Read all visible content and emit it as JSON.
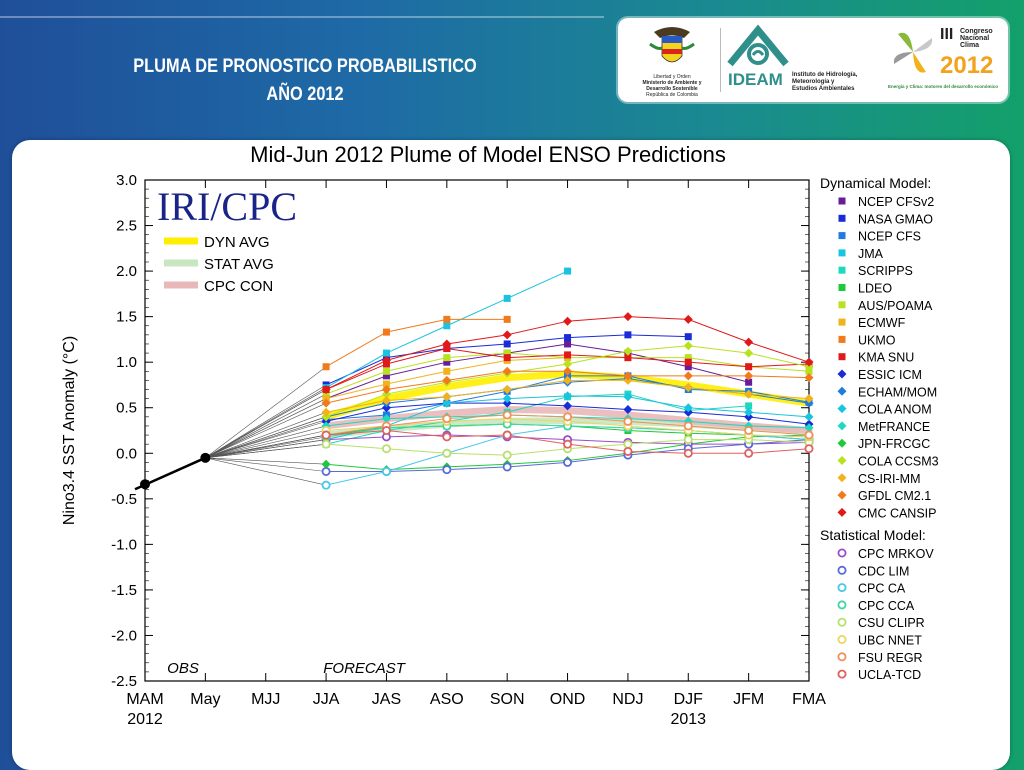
{
  "slide": {
    "title_line1": "PLUMA DE PRONOSTICO PROBABILISTICO",
    "title_line2": "AÑO 2012"
  },
  "logos": {
    "ministerio_lines": [
      "Libertad y Orden",
      "Ministerio de Ambiente y",
      "Desarrollo Sostenible",
      "República de Colombia"
    ],
    "ideam_name": "IDEAM",
    "ideam_lines": [
      "Instituto de Hidrología,",
      "Meteorología y",
      "Estudios Ambientales"
    ],
    "congreso_roman": "III",
    "congreso_lines": [
      "Congreso",
      "Nacional",
      "Clima"
    ],
    "congreso_year": "2012",
    "congreso_tagline": "Energía y Clima: motores del desarrollo económico"
  },
  "chart_data": {
    "type": "line",
    "title": "Mid-Jun 2012 Plume of Model ENSO Predictions",
    "ylabel": "Nino3.4 SST Anomaly (°C)",
    "xlabel": "",
    "ylim": [
      -2.5,
      3.0
    ],
    "yticks": [
      "3.0",
      "2.5",
      "2.0",
      "1.5",
      "1.0",
      "0.5",
      "0.0",
      "-0.5",
      "-1.0",
      "-1.5",
      "-2.0",
      "-2.5"
    ],
    "categories": [
      "MAM",
      "May",
      "MJJ",
      "JJA",
      "JAS",
      "ASO",
      "SON",
      "OND",
      "NDJ",
      "DJF",
      "JFM",
      "FMA"
    ],
    "year_labels": [
      {
        "category": "MAM",
        "text": "2012"
      },
      {
        "category": "DJF",
        "text": "2013"
      }
    ],
    "region_labels": [
      {
        "category": "MAM",
        "text": "OBS"
      },
      {
        "category": "JJA",
        "text": "FORECAST"
      }
    ],
    "badge": "IRI/CPC",
    "averages": [
      {
        "name": "DYN AVG",
        "color": "#ffee00",
        "values": [
          null,
          -0.05,
          null,
          0.4,
          0.6,
          0.73,
          0.83,
          0.87,
          0.83,
          0.75,
          0.65,
          0.55
        ]
      },
      {
        "name": "STAT AVG",
        "color": "#c8e6c0",
        "values": [
          null,
          -0.05,
          null,
          0.2,
          0.27,
          0.32,
          0.35,
          0.36,
          0.35,
          0.32,
          0.28,
          0.25
        ]
      },
      {
        "name": "CPC CON",
        "color": "#e8b8b8",
        "values": [
          null,
          -0.05,
          null,
          0.3,
          0.38,
          0.44,
          0.48,
          0.47,
          0.42,
          0.36,
          0.3,
          0.25
        ]
      }
    ],
    "observed": {
      "values": [
        -0.34,
        -0.05
      ],
      "color": "#000000"
    },
    "dynamical_header": "Dynamical Model:",
    "statistical_header": "Statistical Model:",
    "dynamical_models": [
      {
        "name": "NCEP CFSv2",
        "color": "#6a1b9a",
        "shape": "square",
        "values": [
          0.6,
          0.85,
          1.0,
          1.1,
          1.2,
          1.1,
          0.95,
          0.78,
          null
        ]
      },
      {
        "name": "NASA GMAO",
        "color": "#1a2bd8",
        "shape": "square",
        "values": [
          0.75,
          1.05,
          1.15,
          1.2,
          1.27,
          1.3,
          1.28,
          null,
          null
        ]
      },
      {
        "name": "NCEP CFS",
        "color": "#1e7be0",
        "shape": "square",
        "values": [
          0.37,
          0.42,
          0.55,
          0.68,
          0.85,
          0.85,
          0.7,
          0.68,
          0.56
        ]
      },
      {
        "name": "JMA",
        "color": "#19c4e0",
        "shape": "square",
        "values": [
          0.72,
          1.1,
          1.4,
          1.7,
          2.0,
          null,
          null,
          null,
          null
        ]
      },
      {
        "name": "SCRIPPS",
        "color": "#1ed8c0",
        "shape": "square",
        "values": [
          0.1,
          0.25,
          0.35,
          0.45,
          0.62,
          0.65,
          0.47,
          0.52,
          null
        ]
      },
      {
        "name": "LDEO",
        "color": "#1ec93a",
        "shape": "square",
        "values": [
          0.2,
          0.28,
          0.3,
          0.32,
          0.3,
          0.25,
          0.22,
          0.2,
          0.15
        ]
      },
      {
        "name": "AUS/POAMA",
        "color": "#b8e21e",
        "shape": "square",
        "values": [
          0.65,
          0.9,
          1.05,
          1.1,
          1.05,
          1.05,
          1.05,
          0.95,
          0.9
        ]
      },
      {
        "name": "ECMWF",
        "color": "#f2b21c",
        "shape": "square",
        "values": [
          0.6,
          0.76,
          0.9,
          1.02,
          1.05,
          null,
          null,
          null,
          null
        ]
      },
      {
        "name": "UKMO",
        "color": "#f07a1c",
        "shape": "square",
        "values": [
          0.95,
          1.33,
          1.47,
          1.47,
          null,
          null,
          null,
          null,
          null
        ]
      },
      {
        "name": "KMA SNU",
        "color": "#e01a1a",
        "shape": "square",
        "values": [
          0.7,
          0.98,
          1.15,
          1.05,
          1.08,
          1.05,
          1.0,
          0.95,
          0.98
        ]
      },
      {
        "name": "ESSIC ICM",
        "color": "#1a2bd8",
        "shape": "diamond",
        "values": [
          0.35,
          0.5,
          0.55,
          0.55,
          0.52,
          0.48,
          0.45,
          0.4,
          0.32
        ]
      },
      {
        "name": "ECHAM/MOM",
        "color": "#1e7be0",
        "shape": "diamond",
        "values": [
          0.4,
          0.55,
          0.62,
          0.7,
          0.78,
          0.82,
          0.72,
          0.65,
          0.55
        ]
      },
      {
        "name": "COLA ANOM",
        "color": "#19c4e0",
        "shape": "diamond",
        "values": [
          0.15,
          0.3,
          0.55,
          0.6,
          0.63,
          0.62,
          0.5,
          0.45,
          0.4
        ]
      },
      {
        "name": "MetFRANCE",
        "color": "#1ed8c0",
        "shape": "diamond",
        "values": [
          0.3,
          0.38,
          0.4,
          0.42,
          0.4,
          0.38,
          0.35,
          0.3,
          0.28
        ]
      },
      {
        "name": "JPN-FRCGC",
        "color": "#1ec93a",
        "shape": "diamond",
        "values": [
          -0.12,
          -0.18,
          -0.15,
          -0.12,
          -0.08,
          0.0,
          0.1,
          0.18,
          0.2
        ]
      },
      {
        "name": "COLA CCSM3",
        "color": "#b8e21e",
        "shape": "diamond",
        "values": [
          0.4,
          0.65,
          0.78,
          0.88,
          0.98,
          1.12,
          1.18,
          1.1,
          0.95
        ]
      },
      {
        "name": "CS-IRI-MM",
        "color": "#f2b21c",
        "shape": "diamond",
        "values": [
          0.45,
          0.58,
          0.62,
          0.7,
          0.8,
          0.8,
          0.72,
          0.65,
          0.6
        ]
      },
      {
        "name": "GFDL CM2.1",
        "color": "#f07a1c",
        "shape": "diamond",
        "values": [
          0.55,
          0.7,
          0.8,
          0.9,
          0.9,
          0.85,
          0.85,
          0.85,
          0.83
        ]
      },
      {
        "name": "CMC CANSIP",
        "color": "#e01a1a",
        "shape": "diamond",
        "values": [
          0.7,
          1.02,
          1.2,
          1.3,
          1.45,
          1.5,
          1.47,
          1.22,
          1.0
        ]
      }
    ],
    "statistical_models": [
      {
        "name": "CPC MRKOV",
        "color": "#9a4ec8",
        "shape": "circle",
        "values": [
          0.15,
          0.18,
          0.2,
          0.18,
          0.15,
          0.12,
          0.1,
          0.1,
          0.12
        ]
      },
      {
        "name": "CDC LIM",
        "color": "#5a6ad8",
        "shape": "circle",
        "values": [
          -0.2,
          -0.2,
          -0.18,
          -0.15,
          -0.1,
          -0.02,
          0.05,
          0.1,
          0.15
        ]
      },
      {
        "name": "CPC CA",
        "color": "#48c8e8",
        "shape": "circle",
        "values": [
          -0.35,
          -0.2,
          0.0,
          0.2,
          0.3,
          0.28,
          0.25,
          0.2,
          0.15
        ]
      },
      {
        "name": "CPC CCA",
        "color": "#40d8a0",
        "shape": "circle",
        "values": [
          0.18,
          0.28,
          0.3,
          0.32,
          0.3,
          0.28,
          0.25,
          0.2,
          0.18
        ]
      },
      {
        "name": "CSU CLIPR",
        "color": "#b8e06a",
        "shape": "circle",
        "values": [
          0.1,
          0.05,
          0.0,
          -0.02,
          0.05,
          0.1,
          0.15,
          0.15,
          0.12
        ]
      },
      {
        "name": "UBC NNET",
        "color": "#e8d860",
        "shape": "circle",
        "values": [
          0.25,
          0.3,
          0.35,
          0.38,
          0.35,
          0.3,
          0.25,
          0.2,
          0.18
        ]
      },
      {
        "name": "FSU REGR",
        "color": "#f0905a",
        "shape": "circle",
        "values": [
          0.2,
          0.3,
          0.38,
          0.42,
          0.4,
          0.35,
          0.3,
          0.25,
          0.2
        ]
      },
      {
        "name": "UCLA-TCD",
        "color": "#e06060",
        "shape": "circle",
        "values": [
          0.2,
          0.25,
          0.18,
          0.2,
          0.1,
          0.02,
          0.0,
          0.0,
          0.05
        ]
      }
    ]
  }
}
